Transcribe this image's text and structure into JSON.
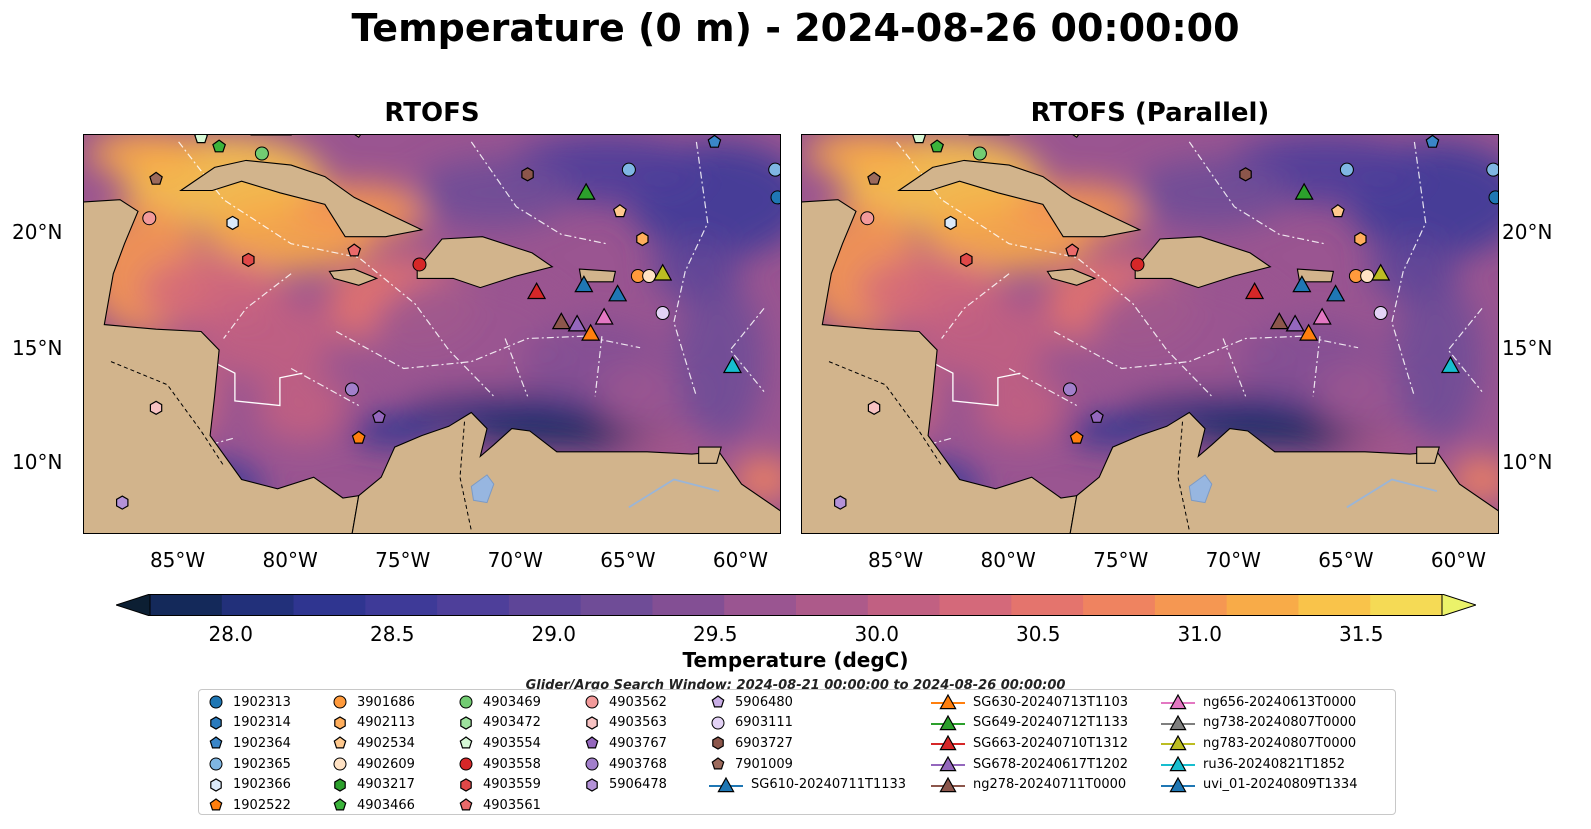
{
  "figure": {
    "title": "Temperature (0 m) - 2024-08-26 00:00:00",
    "panels": [
      {
        "id": "left",
        "title": "RTOFS"
      },
      {
        "id": "right",
        "title": "RTOFS (Parallel)"
      }
    ],
    "lat_ticks": [
      "20°N",
      "15°N",
      "10°N"
    ],
    "lon_ticks": [
      "85°W",
      "80°W",
      "75°W",
      "70°W",
      "65°W",
      "60°W"
    ],
    "extent": {
      "lon": [
        -89.2,
        -58.2
      ],
      "lat": [
        7.0,
        24.3
      ]
    }
  },
  "colorbar": {
    "label": "Temperature (degC)",
    "ticks": [
      "28.0",
      "28.5",
      "29.0",
      "29.5",
      "30.0",
      "30.5",
      "31.0",
      "31.5"
    ],
    "range": [
      27.75,
      31.75
    ],
    "colors": [
      "#0c1f33",
      "#14295a",
      "#22307a",
      "#2f3590",
      "#3e3a98",
      "#4e3f9a",
      "#5e4598",
      "#6f4c97",
      "#834f94",
      "#9a5591",
      "#ad5a8a",
      "#c16082",
      "#d4697a",
      "#e4746d",
      "#ef8360",
      "#f59752",
      "#f8ab48",
      "#f9c34a",
      "#f5da55",
      "#ebf26a"
    ]
  },
  "search_window": "Glider/Argo Search Window: 2024-08-21 00:00:00 to 2024-08-26 00:00:00",
  "legend": {
    "columns": [
      [
        {
          "label": "1902313",
          "marker": "circle",
          "color": "#1f77b4"
        },
        {
          "label": "1902314",
          "marker": "hexagon",
          "color": "#2b7bbd"
        },
        {
          "label": "1902364",
          "marker": "pentagon",
          "color": "#3a86c8"
        },
        {
          "label": "1902365",
          "marker": "circle",
          "color": "#7fb6e3"
        },
        {
          "label": "1902366",
          "marker": "hexagon",
          "color": "#dbeafa"
        },
        {
          "label": "1902522",
          "marker": "pentagon",
          "color": "#ff7f0e"
        }
      ],
      [
        {
          "label": "3901686",
          "marker": "circle",
          "color": "#ff9a3c"
        },
        {
          "label": "4902113",
          "marker": "hexagon",
          "color": "#ffae5c"
        },
        {
          "label": "4902534",
          "marker": "pentagon",
          "color": "#ffc98e"
        },
        {
          "label": "4902609",
          "marker": "circle",
          "color": "#ffe2c4"
        },
        {
          "label": "4903217",
          "marker": "hexagon",
          "color": "#2ca02c"
        },
        {
          "label": "4903466",
          "marker": "pentagon",
          "color": "#3bb33b"
        }
      ],
      [
        {
          "label": "4903469",
          "marker": "circle",
          "color": "#72cc72"
        },
        {
          "label": "4903472",
          "marker": "hexagon",
          "color": "#9ee29e"
        },
        {
          "label": "4903554",
          "marker": "pentagon",
          "color": "#d6f8d6"
        },
        {
          "label": "4903558",
          "marker": "circle",
          "color": "#d62728"
        },
        {
          "label": "4903559",
          "marker": "hexagon",
          "color": "#e04848"
        },
        {
          "label": "4903561",
          "marker": "pentagon",
          "color": "#ea6a6a"
        }
      ],
      [
        {
          "label": "4903562",
          "marker": "circle",
          "color": "#f29a9a"
        },
        {
          "label": "4903563",
          "marker": "hexagon",
          "color": "#f7c2c2"
        },
        {
          "label": "4903767",
          "marker": "pentagon",
          "color": "#9467bd"
        },
        {
          "label": "4903768",
          "marker": "circle",
          "color": "#a27fcb"
        },
        {
          "label": "5906478",
          "marker": "hexagon",
          "color": "#b492d8"
        }
      ],
      [
        {
          "label": "5906480",
          "marker": "pentagon",
          "color": "#c9aee6"
        },
        {
          "label": "6903111",
          "marker": "circle",
          "color": "#e3d2f5"
        },
        {
          "label": "6903727",
          "marker": "hexagon",
          "color": "#8c564b"
        },
        {
          "label": "7901009",
          "marker": "pentagon",
          "color": "#9c6a5c"
        },
        {
          "label": "SG610-20240711T1133",
          "marker": "triangle-line",
          "color": "#1f77b4"
        }
      ],
      [
        {
          "label": "SG630-20240713T1103",
          "marker": "triangle-line",
          "color": "#ff7f0e"
        },
        {
          "label": "SG649-20240712T1133",
          "marker": "triangle-line",
          "color": "#2ca02c"
        },
        {
          "label": "SG663-20240710T1312",
          "marker": "triangle-line",
          "color": "#d62728"
        },
        {
          "label": "SG678-20240617T1202",
          "marker": "triangle-line",
          "color": "#9467bd"
        },
        {
          "label": "ng278-20240711T0000",
          "marker": "triangle-line",
          "color": "#8c564b"
        }
      ],
      [
        {
          "label": "ng656-20240613T0000",
          "marker": "triangle-line",
          "color": "#e377c2"
        },
        {
          "label": "ng738-20240807T0000",
          "marker": "triangle-line",
          "color": "#7f7f7f"
        },
        {
          "label": "ng783-20240807T0000",
          "marker": "triangle-line",
          "color": "#bcbd22"
        },
        {
          "label": "ru36-20240821T1852",
          "marker": "triangle-line",
          "color": "#17becf"
        },
        {
          "label": "uvi_01-20240809T1334",
          "marker": "triangle-line",
          "color": "#1f77b4"
        }
      ]
    ]
  },
  "map_markers": [
    {
      "id": "1902313",
      "marker": "circle",
      "color": "#1f77b4",
      "lon": -58.4,
      "lat": 21.6
    },
    {
      "id": "1902364",
      "marker": "pentagon",
      "color": "#3a86c8",
      "lon": -61.2,
      "lat": 24.0
    },
    {
      "id": "1902365",
      "marker": "circle",
      "color": "#7fb6e3",
      "lon": -65.0,
      "lat": 22.8
    },
    {
      "id": "1902365b",
      "marker": "circle",
      "color": "#7fb6e3",
      "lon": -58.5,
      "lat": 22.8
    },
    {
      "id": "1902366",
      "marker": "hexagon",
      "color": "#dbeafa",
      "lon": -82.6,
      "lat": 20.5
    },
    {
      "id": "1902522",
      "marker": "pentagon",
      "color": "#ff7f0e",
      "lon": -77.0,
      "lat": 11.2
    },
    {
      "id": "3901686",
      "marker": "circle",
      "color": "#ff9a3c",
      "lon": -64.6,
      "lat": 18.2
    },
    {
      "id": "4902113",
      "marker": "hexagon",
      "color": "#ffae5c",
      "lon": -64.4,
      "lat": 19.8
    },
    {
      "id": "4902534",
      "marker": "pentagon",
      "color": "#ffc98e",
      "lon": -65.4,
      "lat": 21.0
    },
    {
      "id": "4902609",
      "marker": "circle",
      "color": "#ffe2c4",
      "lon": -64.1,
      "lat": 18.2
    },
    {
      "id": "4903466",
      "marker": "pentagon",
      "color": "#3bb33b",
      "lon": -83.2,
      "lat": 23.8
    },
    {
      "id": "4903469",
      "marker": "circle",
      "color": "#72cc72",
      "lon": -81.3,
      "lat": 23.5
    },
    {
      "id": "4903554",
      "marker": "pentagon",
      "color": "#d6f8d6",
      "lon": -84.0,
      "lat": 24.2
    },
    {
      "id": "4903558",
      "marker": "circle",
      "color": "#d62728",
      "lon": -74.3,
      "lat": 18.7
    },
    {
      "id": "4903559",
      "marker": "hexagon",
      "color": "#e04848",
      "lon": -81.9,
      "lat": 18.9
    },
    {
      "id": "4903561",
      "marker": "pentagon",
      "color": "#ea6a6a",
      "lon": -77.2,
      "lat": 19.3
    },
    {
      "id": "4903562",
      "marker": "circle",
      "color": "#f29a9a",
      "lon": -86.3,
      "lat": 20.7
    },
    {
      "id": "4903563",
      "marker": "hexagon",
      "color": "#f7c2c2",
      "lon": -86.0,
      "lat": 12.5
    },
    {
      "id": "4903767",
      "marker": "pentagon",
      "color": "#9467bd",
      "lon": -76.1,
      "lat": 12.1
    },
    {
      "id": "4903768",
      "marker": "circle",
      "color": "#a27fcb",
      "lon": -77.3,
      "lat": 13.3
    },
    {
      "id": "5906478",
      "marker": "hexagon",
      "color": "#b492d8",
      "lon": -87.5,
      "lat": 8.4
    },
    {
      "id": "6903111",
      "marker": "circle",
      "color": "#e3d2f5",
      "lon": -63.5,
      "lat": 16.6
    },
    {
      "id": "6903727",
      "marker": "hexagon",
      "color": "#8c564b",
      "lon": -69.5,
      "lat": 22.6
    },
    {
      "id": "7901009",
      "marker": "pentagon",
      "color": "#9c6a5c",
      "lon": -86.0,
      "lat": 22.4
    },
    {
      "id": "SG610",
      "marker": "triangle",
      "color": "#1f77b4",
      "lon": -65.5,
      "lat": 17.4
    },
    {
      "id": "SG630",
      "marker": "triangle",
      "color": "#ff7f0e",
      "lon": -66.7,
      "lat": 15.7
    },
    {
      "id": "SG649",
      "marker": "triangle",
      "color": "#2ca02c",
      "lon": -66.9,
      "lat": 21.8
    },
    {
      "id": "SG663",
      "marker": "triangle",
      "color": "#d62728",
      "lon": -69.1,
      "lat": 17.5
    },
    {
      "id": "SG678",
      "marker": "triangle",
      "color": "#9467bd",
      "lon": -67.3,
      "lat": 16.1
    },
    {
      "id": "ng278",
      "marker": "triangle",
      "color": "#8c564b",
      "lon": -68.0,
      "lat": 16.2
    },
    {
      "id": "ng656",
      "marker": "triangle",
      "color": "#e377c2",
      "lon": -66.1,
      "lat": 16.4
    },
    {
      "id": "ng783",
      "marker": "triangle",
      "color": "#bcbd22",
      "lon": -63.5,
      "lat": 18.3
    },
    {
      "id": "ru36",
      "marker": "triangle",
      "color": "#17becf",
      "lon": -60.4,
      "lat": 14.3
    },
    {
      "id": "uvi_01",
      "marker": "triangle",
      "color": "#1f77b4",
      "lon": -67.0,
      "lat": 17.8
    }
  ]
}
